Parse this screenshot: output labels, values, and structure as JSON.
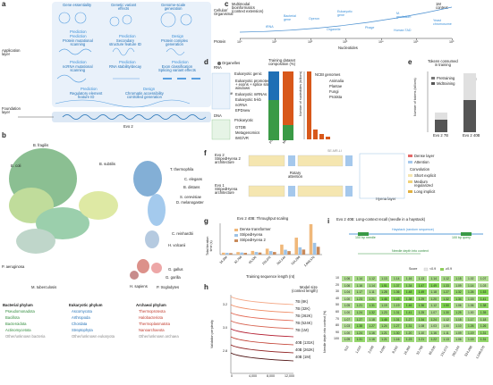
{
  "colors": {
    "blue": "#1f6fb5",
    "light_blue": "#5aa0e0",
    "orange": "#d8581a",
    "green": "#3a9a46",
    "red": "#c0392b",
    "heat_green": "#8fce5a",
    "heat_light": "#d6efbf"
  },
  "panel_labels": {
    "a": "a",
    "b": "b",
    "c": "c",
    "d": "d",
    "e": "e",
    "f": "f",
    "g": "g",
    "h": "h",
    "i": "i"
  },
  "panel_a": {
    "row_labels": [
      "Cellular/\nOrganismal",
      "Protein",
      "RNA",
      "Epigenome",
      "DNA"
    ],
    "side_labels": {
      "application": "Application\nlayer",
      "foundation": "Foundation\nlayer"
    },
    "cells": [
      {
        "title": "Gene essentiality",
        "tag": "Prediction",
        "desc": ""
      },
      {
        "title": "Genetic variant\neffects",
        "tag": "",
        "desc": ""
      },
      {
        "title": "Genome-scale\ngeneration",
        "tag": "",
        "desc": ""
      },
      {
        "title": "",
        "tag": "Prediction",
        "desc": "Protein mutational\nscanning"
      },
      {
        "title": "",
        "tag": "Prediction",
        "desc": "Secondary\nstructure feature ID"
      },
      {
        "title": "",
        "tag": "Design",
        "desc": "Protein complex\ngeneration"
      },
      {
        "title": "",
        "tag": "Prediction",
        "desc": "ncRNA mutational\nscanning"
      },
      {
        "title": "",
        "tag": "Prediction",
        "desc": "RNA stability/decay"
      },
      {
        "title": "",
        "tag": "Prediction",
        "desc": "Exon classification\nSplicing variant effects"
      },
      {
        "title": "",
        "tag": "Prediction",
        "desc": "Regulatory element\nfeature ID"
      },
      {
        "title": "",
        "tag": "Design",
        "desc": "Chromatin accessibility\ncontrolled generation"
      }
    ],
    "evo2_label": "Evo 2",
    "dna_label": "DNA"
  },
  "panel_c": {
    "title": "Multimodal\nbioinformatics\n(context extension)",
    "axis_label": "Nucleotides",
    "end_label": "1M\ncontext",
    "ticks": [
      "10⁰",
      "10¹",
      "10²",
      "10³",
      "10⁴",
      "10⁵",
      "10⁶"
    ],
    "items": [
      "tRNA",
      "Bacterial\ngene",
      "Operon",
      "Eukaryotic\ngene",
      "Organelle",
      "Phage",
      "M.\ngenitalium",
      "Yeast\nchromosome",
      "Human TAD"
    ]
  },
  "panel_b": {
    "species": [
      "B. fragilis",
      "E. coli",
      "B. subtilis",
      "T. thermophila",
      "C. elegans",
      "B. distans",
      "S. cerevisiae",
      "D. melanogaster",
      "C. reinhardtii",
      "H. volcanii",
      "G. gallus",
      "G. gorilla",
      "H. sapiens",
      "P. troglodytes",
      "P. aeruginosa",
      "M. tuberculosis"
    ],
    "legend_bact_title": "Bacterial phylum",
    "legend_bact": [
      "Pseudomonadota",
      "Bacillota",
      "Bacteroidota",
      "Actinomycetota",
      "Other/unknown bacteria"
    ],
    "legend_euk_title": "Eukaryotic phylum",
    "legend_euk": [
      "Ascomycota",
      "Arthropoda",
      "Chordata",
      "Streptophyta",
      "Other/unknown eukaryota"
    ],
    "legend_arch_title": "Archaeal phylum",
    "legend_arch": [
      "Thermoproteota",
      "Halobacteriota",
      "Thermoplasmatota",
      "Nanoarchaeota",
      "Other/unknown archaea"
    ]
  },
  "panel_d": {
    "legend_title": "Organelles",
    "euk_title": "Eukaryotic genic",
    "euk_items": [
      "Eukaryotic promoter\n+ exons + splice sites\nwindows",
      "Eukaryotic mRNAs",
      "Eukaryotic 5-kb",
      "ncRNA",
      "EPDnew"
    ],
    "prok_title": "Prokaryotic",
    "prok_items": [
      "GTDB",
      "Metagenomics",
      "IMG/VR"
    ],
    "chart_title": "Training dataset\ncomposition (%)",
    "bars": [
      "Pretraining",
      "Midtraining"
    ],
    "ncbi_title": "NCBI genomes",
    "ncbi_items": [
      "Animalia",
      "Plantae",
      "Fungi",
      "Protista"
    ],
    "ylabel": "Number of nucleotides (billions)"
  },
  "panel_e": {
    "title": "Tokens consumed\nin training",
    "legend": [
      "Pretraining",
      "Midtraining"
    ],
    "ylabel": "Number of tokens (billions)",
    "bars": [
      {
        "name": "Evo 2 7B",
        "label": "Evo 2\n7B"
      },
      {
        "name": "Evo 2 40B",
        "label": "Evo 2\n40B"
      }
    ]
  },
  "panel_f": {
    "rows": [
      "Evo 2\nStripedHyena 2\narchitecture",
      "Evo 1\nStripedHyena\narchitecture"
    ],
    "rotary": "Rotary\nattention",
    "se_label": "SE-MR-LI",
    "hyena": "Hyena layer",
    "legend": [
      "Dense layer",
      "Attention",
      "Convolution",
      "Short explicit",
      "Medium\nregularized",
      "Long implicit"
    ]
  },
  "chart_data": [
    {
      "type": "bar",
      "title": "Evo 2 40B: Throughput scaling",
      "ylabel": "Total iteration\ntime (s)",
      "xlabel": "Training sequence length (nt)",
      "categories": [
        "16,384",
        "32,768",
        "65,536",
        "131,072",
        "262,144",
        "524,288",
        "1,048,576"
      ],
      "series": [
        {
          "name": "Dense transformer",
          "values": [
            2.2,
            2.9,
            4.2,
            6.8,
            11.5,
            19.5,
            35.0
          ]
        },
        {
          "name": "StripedHyena",
          "values": [
            2.0,
            2.4,
            3.0,
            4.0,
            5.6,
            8.4,
            13.5
          ]
        },
        {
          "name": "StripedHyena 2",
          "values": [
            1.7,
            2.0,
            2.4,
            3.0,
            4.0,
            5.8,
            9.0
          ]
        }
      ]
    },
    {
      "type": "line",
      "ylabel": "Validation perplexity",
      "xlabel": "",
      "legend_title": "Model size\n(context length)",
      "x_ticks": [
        "0",
        "4,000",
        "8,000",
        "12,000"
      ],
      "y_ticks": [
        "2.8",
        "3.0",
        "3.2"
      ],
      "series": [
        {
          "name": "7B (8K)"
        },
        {
          "name": "7B (32K)"
        },
        {
          "name": "7B (262K)"
        },
        {
          "name": "7B (524K)"
        },
        {
          "name": "7B (1M)"
        },
        {
          "name": "40B (131K)"
        },
        {
          "name": "40B (262K)"
        },
        {
          "name": "40B (1M)"
        }
      ]
    },
    {
      "type": "heatmap",
      "title": "Evo 2 40B: Long-context recall (needle in a haystack)",
      "ylabel": "Needle depth into context (%)",
      "legend": [
        "Score",
        "<0.9",
        "≥0.9"
      ],
      "x_categories": [
        "512",
        "1,024",
        "2,048",
        "4,096",
        "8,192",
        "16,384",
        "32,768",
        "65,536",
        "131,072",
        "262,144",
        "524,288",
        "1,048,576"
      ],
      "y_categories": [
        "10",
        "20",
        "30",
        "40",
        "50",
        "60",
        "70",
        "80",
        "90",
        "100"
      ],
      "rows": [
        [
          "1.06",
          "1.14",
          "1.12",
          "1.13",
          "1.14",
          "1.16",
          "1.13",
          "1.14",
          "1.12",
          "1.15",
          "1.02",
          "1.07"
        ],
        [
          "1.06",
          "1.16",
          "1.14",
          "1.51",
          "1.37",
          "1.34",
          "1.47",
          "1.49",
          "1.33",
          "1.09",
          "1.14",
          "1.03"
        ],
        [
          "1.04",
          "1.17",
          "1.11",
          "1.28",
          "1.36",
          "1.48",
          "1.49",
          "1.18",
          "1.27",
          "1.32",
          "1.26",
          "1.53"
        ],
        [
          "1.00",
          "1.23",
          "1.21",
          "1.46",
          "1.43",
          "1.38",
          "1.29",
          "1.20",
          "1.32",
          "1.34",
          "1.15",
          "1.41"
        ],
        [
          "1.05",
          "1.21",
          "1.31",
          "1.19",
          "1.19",
          "1.46",
          "1.36",
          "1.12",
          "1.50",
          "1.06",
          "1.06",
          "1.38"
        ],
        [
          "1.00",
          "1.24",
          "1.32",
          "1.23",
          "1.31",
          "1.41",
          "1.25",
          "1.07",
          "1.30",
          "1.25",
          "1.00",
          "1.35"
        ],
        [
          "1.07",
          "1.27",
          "1.18",
          "1.46",
          "1.31",
          "1.27",
          "1.34",
          "1.24",
          "1.12",
          "1.15",
          "1.17",
          "1.18"
        ],
        [
          "1.03",
          "1.38",
          "1.27",
          "1.24",
          "1.27",
          "1.31",
          "1.08",
          "1.03",
          "1.00",
          "1.10",
          "1.26",
          "1.26"
        ],
        [
          "1.00",
          "1.24",
          "1.16",
          "1.21",
          "1.30",
          "1.20",
          "1.10",
          "1.16",
          "1.11",
          "1.09",
          "1.19",
          "1.31"
        ],
        [
          "1.09",
          "1.31",
          "1.16",
          "1.21",
          "1.16",
          "1.23",
          "1.21",
          "1.22",
          "1.13",
          "1.06",
          "1.15",
          "1.31"
        ]
      ],
      "diagram_labels": [
        "Haystack (random sequence)",
        "100 bp needle",
        "100 bp query",
        "Needle depth into context"
      ]
    }
  ]
}
